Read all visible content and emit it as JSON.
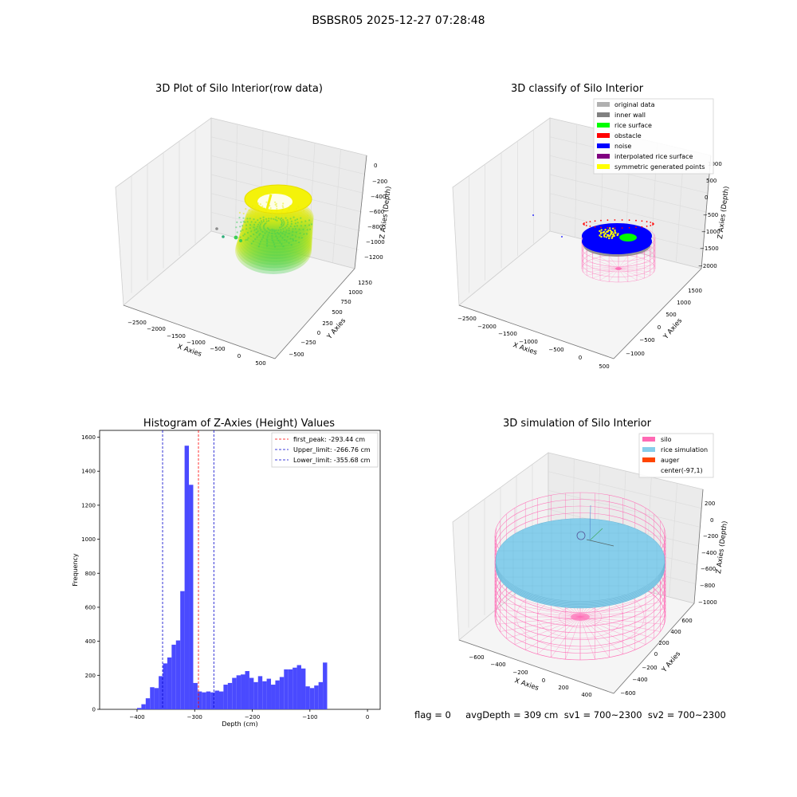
{
  "suptitle": "BSBSR05 2025-12-27 07:28:48",
  "footer_text": "flag = 0     avgDepth = 309 cm  sv1 = 700~2300  sv2 = 700~2300",
  "colors": {
    "original": "#b0b0b0",
    "inner_wall": "#808080",
    "rice_surface": "#00ff00",
    "obstacle": "#ff0000",
    "noise": "#0000ff",
    "interp_surface": "#800080",
    "symmetric": "#ffff00",
    "silo": "#ff69b4",
    "rice_sim": "#87ceeb",
    "auger": "#ff4500",
    "hist_bar": "#4a4aff"
  },
  "chart_data": [
    {
      "type": "scatter",
      "title": "3D Plot of Silo Interior(row data)",
      "xlabel": "X Axies",
      "ylabel": "Y Axies",
      "zlabel": "Z Axies (Depth)",
      "x_ticks": [
        "−2500",
        "−2000",
        "−1500",
        "−1000",
        "−500",
        "0",
        "500"
      ],
      "y_ticks": [
        "−500",
        "−250",
        "0",
        "250",
        "500",
        "750",
        "1000",
        "1250"
      ],
      "z_ticks": [
        "−1200",
        "−1000",
        "−800",
        "−600",
        "−400",
        "−200",
        "0"
      ]
    },
    {
      "type": "scatter",
      "title": "3D classify of Silo Interior",
      "xlabel": "X Axies",
      "ylabel": "Y Axies",
      "zlabel": "Z Axies (Depth)",
      "x_ticks": [
        "−2500",
        "−2000",
        "−1500",
        "−1000",
        "−500",
        "0",
        "500"
      ],
      "y_ticks": [
        "−1000",
        "−500",
        "0",
        "500",
        "1000",
        "1500"
      ],
      "z_ticks": [
        "−2000",
        "−1500",
        "−1000",
        "−500",
        "0",
        "500",
        "1000"
      ],
      "legend": [
        "original data",
        "inner wall",
        "rice surface",
        "obstacle",
        "noise",
        "interpolated rice surface",
        "symmetric generated points"
      ],
      "legend_position": "top-right"
    },
    {
      "type": "bar",
      "title": "Histogram of Z-Axies (Height) Values",
      "xlabel": "Depth (cm)",
      "ylabel": "Frequency",
      "xlim": [
        -465,
        22
      ],
      "ylim": [
        0,
        1640
      ],
      "bin_width": 7.5,
      "bins": [
        {
          "x": -400,
          "v": 8
        },
        {
          "x": -392.5,
          "v": 30
        },
        {
          "x": -385,
          "v": 65
        },
        {
          "x": -377.5,
          "v": 130
        },
        {
          "x": -370,
          "v": 125
        },
        {
          "x": -362.5,
          "v": 195
        },
        {
          "x": -355,
          "v": 270
        },
        {
          "x": -347.5,
          "v": 305
        },
        {
          "x": -340,
          "v": 380
        },
        {
          "x": -332.5,
          "v": 405
        },
        {
          "x": -325,
          "v": 695
        },
        {
          "x": -317.5,
          "v": 1550
        },
        {
          "x": -310,
          "v": 1320
        },
        {
          "x": -302.5,
          "v": 155
        },
        {
          "x": -295,
          "v": 105
        },
        {
          "x": -287.5,
          "v": 100
        },
        {
          "x": -280,
          "v": 105
        },
        {
          "x": -272.5,
          "v": 100
        },
        {
          "x": -265,
          "v": 110
        },
        {
          "x": -257.5,
          "v": 105
        },
        {
          "x": -250,
          "v": 145
        },
        {
          "x": -242.5,
          "v": 155
        },
        {
          "x": -235,
          "v": 185
        },
        {
          "x": -227.5,
          "v": 200
        },
        {
          "x": -220,
          "v": 205
        },
        {
          "x": -212.5,
          "v": 225
        },
        {
          "x": -205,
          "v": 185
        },
        {
          "x": -197.5,
          "v": 160
        },
        {
          "x": -190,
          "v": 195
        },
        {
          "x": -182.5,
          "v": 165
        },
        {
          "x": -175,
          "v": 180
        },
        {
          "x": -167.5,
          "v": 145
        },
        {
          "x": -160,
          "v": 170
        },
        {
          "x": -152.5,
          "v": 190
        },
        {
          "x": -145,
          "v": 235
        },
        {
          "x": -137.5,
          "v": 235
        },
        {
          "x": -130,
          "v": 245
        },
        {
          "x": -122.5,
          "v": 260
        },
        {
          "x": -115,
          "v": 240
        },
        {
          "x": -107.5,
          "v": 135
        },
        {
          "x": -100,
          "v": 125
        },
        {
          "x": -92.5,
          "v": 140
        },
        {
          "x": -85,
          "v": 160
        },
        {
          "x": -77.5,
          "v": 275
        }
      ],
      "x_ticks": [
        -400,
        -300,
        -200,
        -100,
        0
      ],
      "y_ticks": [
        0,
        200,
        400,
        600,
        800,
        1000,
        1200,
        1400,
        1600
      ],
      "vlines": [
        {
          "x": -293.44,
          "color": "#ff0000",
          "label": "first_peak: -293.44 cm"
        },
        {
          "x": -266.76,
          "color": "#0000cc",
          "label": "Upper_limit: -266.76 cm"
        },
        {
          "x": -355.68,
          "color": "#0000cc",
          "label": "Lower_limit: -355.68 cm"
        }
      ],
      "legend_position": "top-right"
    },
    {
      "type": "scatter",
      "title": "3D simulation of Silo Interior",
      "xlabel": "X Axies",
      "ylabel": "Y Axies",
      "zlabel": "Z Axies (Depth)",
      "x_ticks": [
        "−600",
        "−400",
        "−200",
        "0",
        "200",
        "400"
      ],
      "y_ticks": [
        "−600",
        "−400",
        "−200",
        "0",
        "200",
        "400",
        "600"
      ],
      "z_ticks": [
        "−1000",
        "−800",
        "−600",
        "−400",
        "−200",
        "0",
        "200"
      ],
      "legend": [
        "silo",
        "rice simulation",
        "auger",
        "center(-97,1)"
      ],
      "legend_position": "top-right"
    }
  ]
}
